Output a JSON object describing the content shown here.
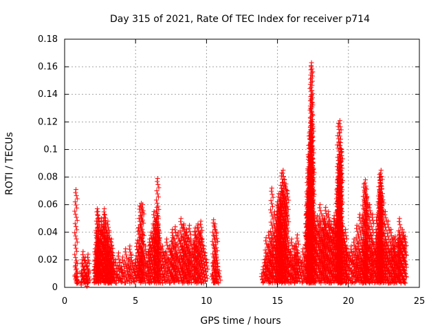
{
  "chart_data": {
    "type": "scatter",
    "title": "Day 315 of 2021, Rate Of TEC Index for receiver p714",
    "xlabel": "GPS time / hours",
    "ylabel": "ROTI / TECUs",
    "xlim": [
      0,
      25
    ],
    "ylim": [
      0,
      0.18
    ],
    "xticks": [
      0,
      5,
      10,
      15,
      20,
      25
    ],
    "xtick_labels": [
      "0",
      "5",
      "10",
      "15",
      "20",
      "25"
    ],
    "yticks": [
      0,
      0.02,
      0.04,
      0.06,
      0.08,
      0.1,
      0.12,
      0.14,
      0.16,
      0.18
    ],
    "ytick_labels": [
      "0",
      "0.02",
      "0.04",
      "0.06",
      "0.08",
      "0.1",
      "0.12",
      "0.14",
      "0.16",
      "0.18"
    ],
    "grid": true,
    "marker": "+",
    "color": "#ff0000",
    "series": [
      {
        "name": "ROTI",
        "x": [
          0.8,
          0.8,
          0.85,
          0.85,
          0.9,
          0.9,
          1.2,
          1.25,
          1.3,
          1.35,
          1.4,
          1.45,
          1.5,
          1.55,
          1.6,
          1.65,
          1.7,
          1.2,
          1.4,
          1.6,
          2.1,
          2.15,
          2.2,
          2.25,
          2.3,
          2.35,
          2.4,
          2.45,
          2.5,
          2.55,
          2.6,
          2.65,
          2.7,
          2.75,
          2.8,
          2.85,
          2.9,
          2.95,
          3.0,
          3.05,
          3.1,
          3.15,
          3.2,
          3.25,
          3.3,
          3.35,
          3.4,
          3.45,
          3.5,
          2.3,
          2.35,
          2.8,
          2.9,
          3.0,
          3.05,
          2.4,
          2.6,
          3.2,
          3.3,
          3.6,
          3.7,
          3.8,
          3.9,
          4.0,
          4.1,
          4.2,
          4.3,
          4.4,
          4.5,
          4.6,
          4.7,
          4.8,
          4.9,
          5.0,
          5.1,
          5.2,
          5.3,
          5.4,
          5.5,
          5.6,
          5.7,
          5.8,
          5.9,
          6.0,
          5.4,
          5.5,
          5.3,
          5.2,
          6.0,
          6.1,
          6.2,
          6.3,
          6.4,
          6.5,
          6.6,
          6.7,
          6.8,
          6.9,
          7.0,
          6.3,
          6.4,
          6.5,
          6.55,
          6.5,
          6.6,
          7.1,
          7.2,
          7.3,
          7.4,
          7.5,
          7.6,
          7.7,
          7.8,
          7.9,
          8.0,
          8.1,
          8.2,
          8.3,
          8.4,
          8.5,
          8.6,
          8.7,
          8.8,
          8.9,
          9.0,
          9.1,
          9.2,
          9.3,
          9.4,
          9.5,
          9.6,
          9.7,
          9.8,
          9.9,
          10.0,
          7.6,
          7.8,
          8.2,
          8.4,
          8.6,
          8.8,
          9.2,
          9.4,
          9.6,
          10.4,
          10.5,
          10.6,
          10.7,
          10.8,
          10.9,
          10.5,
          10.6,
          10.7,
          13.9,
          14.0,
          14.1,
          14.2,
          14.3,
          14.4,
          14.5,
          14.6,
          14.7,
          14.8,
          14.9,
          15.0,
          15.1,
          15.2,
          15.3,
          15.4,
          15.5,
          15.6,
          15.7,
          15.8,
          15.9,
          16.0,
          16.1,
          16.2,
          16.3,
          16.4,
          16.5,
          16.6,
          16.7,
          16.8,
          16.9,
          14.2,
          14.4,
          14.6,
          14.8,
          15.0,
          15.1,
          15.2,
          15.3,
          15.4,
          15.5,
          15.6,
          15.7,
          16.0,
          16.2,
          16.4,
          15.0,
          15.1,
          15.2,
          15.3,
          15.4,
          15.5,
          15.6,
          17.0,
          17.05,
          17.1,
          17.15,
          17.2,
          17.25,
          17.3,
          17.35,
          17.4,
          17.45,
          17.5,
          17.55,
          17.6,
          17.65,
          17.7,
          17.8,
          17.9,
          18.0,
          18.1,
          18.2,
          18.3,
          18.4,
          18.5,
          18.6,
          18.7,
          18.8,
          18.9,
          19.0,
          19.1,
          19.2,
          19.3,
          19.4,
          19.5,
          19.6,
          19.7,
          19.8,
          19.9,
          20.0,
          17.1,
          17.15,
          17.2,
          17.25,
          17.3,
          17.35,
          17.4,
          17.45,
          17.5,
          17.2,
          17.3,
          17.4,
          17.35,
          17.4,
          17.45,
          17.4,
          17.38,
          17.3,
          19.2,
          19.25,
          19.3,
          19.35,
          19.4,
          19.45,
          19.5,
          19.3,
          19.4,
          19.35,
          19.45,
          19.3,
          18.0,
          18.2,
          18.4,
          18.6,
          18.8,
          19.0,
          19.6,
          19.8,
          20.1,
          20.2,
          20.3,
          20.4,
          20.5,
          20.6,
          20.7,
          20.8,
          20.9,
          21.0,
          21.1,
          21.2,
          21.3,
          21.4,
          21.5,
          21.6,
          21.7,
          21.8,
          21.9,
          22.0,
          22.1,
          22.2,
          22.3,
          22.4,
          22.5,
          22.6,
          22.7,
          22.8,
          22.9,
          23.0,
          23.1,
          23.2,
          23.3,
          23.4,
          23.5,
          23.6,
          23.7,
          23.8,
          23.9,
          24.0,
          21.0,
          21.1,
          21.2,
          21.3,
          21.5,
          21.7,
          22.0,
          22.1,
          22.2,
          22.25,
          22.3,
          22.4,
          22.6,
          22.8,
          23.0,
          23.3,
          23.6,
          23.8,
          24.0,
          22.2,
          22.25,
          22.3,
          22.35,
          22.2,
          22.3,
          21.2,
          21.3,
          21.25,
          20.8,
          20.6,
          23.5,
          23.6,
          23.2
        ],
        "y": [
          0.071,
          0.018,
          0.01,
          0.007,
          0.005,
          0.008,
          0.012,
          0.02,
          0.026,
          0.008,
          0.015,
          0.022,
          0.005,
          0.01,
          0.018,
          0.024,
          0.012,
          0.004,
          0.006,
          0.003,
          0.015,
          0.028,
          0.022,
          0.04,
          0.035,
          0.055,
          0.03,
          0.045,
          0.025,
          0.038,
          0.05,
          0.02,
          0.042,
          0.033,
          0.057,
          0.028,
          0.046,
          0.018,
          0.036,
          0.03,
          0.025,
          0.04,
          0.02,
          0.015,
          0.03,
          0.012,
          0.025,
          0.018,
          0.01,
          0.057,
          0.052,
          0.053,
          0.047,
          0.04,
          0.048,
          0.032,
          0.044,
          0.028,
          0.035,
          0.02,
          0.012,
          0.025,
          0.018,
          0.015,
          0.022,
          0.01,
          0.028,
          0.016,
          0.02,
          0.03,
          0.024,
          0.018,
          0.015,
          0.02,
          0.032,
          0.025,
          0.018,
          0.028,
          0.038,
          0.022,
          0.03,
          0.018,
          0.026,
          0.035,
          0.061,
          0.06,
          0.059,
          0.043,
          0.03,
          0.04,
          0.035,
          0.045,
          0.038,
          0.05,
          0.042,
          0.036,
          0.028,
          0.03,
          0.025,
          0.055,
          0.048,
          0.058,
          0.079,
          0.052,
          0.046,
          0.025,
          0.035,
          0.02,
          0.03,
          0.028,
          0.036,
          0.018,
          0.032,
          0.025,
          0.04,
          0.022,
          0.034,
          0.03,
          0.045,
          0.038,
          0.042,
          0.03,
          0.025,
          0.035,
          0.028,
          0.033,
          0.04,
          0.03,
          0.045,
          0.038,
          0.048,
          0.035,
          0.03,
          0.025,
          0.02,
          0.042,
          0.044,
          0.05,
          0.046,
          0.04,
          0.045,
          0.043,
          0.046,
          0.04,
          0.01,
          0.018,
          0.028,
          0.022,
          0.015,
          0.012,
          0.049,
          0.046,
          0.04,
          0.01,
          0.015,
          0.02,
          0.025,
          0.018,
          0.03,
          0.022,
          0.035,
          0.028,
          0.04,
          0.033,
          0.045,
          0.05,
          0.038,
          0.03,
          0.035,
          0.04,
          0.028,
          0.022,
          0.03,
          0.026,
          0.02,
          0.018,
          0.024,
          0.032,
          0.025,
          0.02,
          0.022,
          0.018,
          0.028,
          0.02,
          0.036,
          0.04,
          0.072,
          0.055,
          0.062,
          0.068,
          0.06,
          0.083,
          0.085,
          0.078,
          0.075,
          0.07,
          0.035,
          0.03,
          0.038,
          0.055,
          0.058,
          0.065,
          0.072,
          0.069,
          0.065,
          0.058,
          0.04,
          0.055,
          0.062,
          0.048,
          0.07,
          0.052,
          0.045,
          0.06,
          0.05,
          0.058,
          0.042,
          0.055,
          0.048,
          0.038,
          0.045,
          0.052,
          0.04,
          0.048,
          0.036,
          0.042,
          0.05,
          0.046,
          0.04,
          0.055,
          0.048,
          0.036,
          0.042,
          0.05,
          0.045,
          0.048,
          0.055,
          0.062,
          0.046,
          0.04,
          0.035,
          0.03,
          0.028,
          0.025,
          0.068,
          0.085,
          0.095,
          0.112,
          0.11,
          0.105,
          0.1,
          0.093,
          0.09,
          0.077,
          0.087,
          0.075,
          0.119,
          0.139,
          0.12,
          0.163,
          0.16,
          0.078,
          0.07,
          0.08,
          0.092,
          0.087,
          0.095,
          0.105,
          0.1,
          0.119,
          0.121,
          0.072,
          0.083,
          0.065,
          0.06,
          0.052,
          0.058,
          0.048,
          0.046,
          0.052,
          0.044,
          0.042,
          0.025,
          0.03,
          0.022,
          0.035,
          0.028,
          0.02,
          0.032,
          0.026,
          0.018,
          0.03,
          0.025,
          0.035,
          0.028,
          0.042,
          0.03,
          0.038,
          0.025,
          0.032,
          0.028,
          0.04,
          0.035,
          0.045,
          0.038,
          0.032,
          0.028,
          0.035,
          0.025,
          0.03,
          0.022,
          0.028,
          0.035,
          0.03,
          0.026,
          0.02,
          0.032,
          0.038,
          0.03,
          0.035,
          0.04,
          0.03,
          0.052,
          0.075,
          0.078,
          0.065,
          0.06,
          0.053,
          0.051,
          0.062,
          0.07,
          0.078,
          0.085,
          0.068,
          0.055,
          0.048,
          0.042,
          0.037,
          0.05,
          0.042,
          0.037,
          0.082,
          0.08,
          0.066,
          0.06,
          0.058,
          0.056,
          0.072,
          0.066,
          0.06,
          0.053,
          0.045,
          0.035,
          0.04,
          0.036
        ]
      }
    ]
  }
}
